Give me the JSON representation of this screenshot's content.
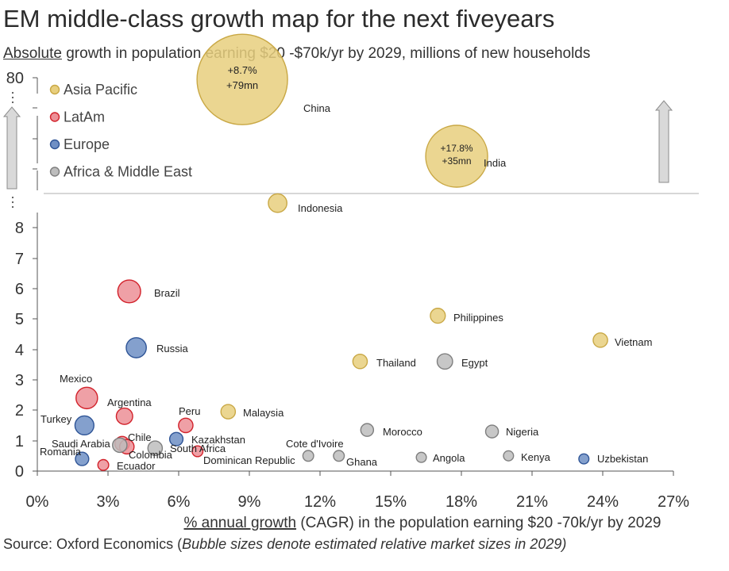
{
  "title": "EM middle-class growth map for the next fiveyears",
  "subtitle": {
    "underlined": "Absolute",
    "rest": " growth in population earning $20 -$70k/yr by 2029, millions of new households"
  },
  "source": {
    "plain": "Source: Oxford Economics (",
    "italic": "Bubble sizes denote estimated relative market sizes in 2029)"
  },
  "chart_data": {
    "type": "scatter",
    "title": "EM middle-class growth map for the next fiveyears",
    "xlabel_underlined": "% annual growth",
    "xlabel_rest": " (CAGR) in the population earning $20 -70k/yr by 2029",
    "x_ticks": [
      "0%",
      "3%",
      "6%",
      "9%",
      "12%",
      "15%",
      "18%",
      "21%",
      "24%",
      "27%"
    ],
    "xlim": [
      0,
      27
    ],
    "y_ticks": [
      "0",
      "1",
      "2",
      "3",
      "4",
      "5",
      "6",
      "7",
      "8",
      "80"
    ],
    "ylim": [
      0,
      80
    ],
    "y_axis_break": true,
    "grid": false,
    "legend_position": "top-left",
    "colors": {
      "Asia Pacific": "#e8cf7e",
      "LatAm": "#ec8f96",
      "Europe": "#6f8fc4",
      "Africa & Middle East": "#bdbdbd"
    },
    "stroke_colors": {
      "Asia Pacific": "#c9a845",
      "LatAm": "#d2222b",
      "Europe": "#2f5597",
      "Africa & Middle East": "#7f7f7f"
    },
    "legend": [
      "Asia Pacific",
      "LatAm",
      "Europe",
      "Africa & Middle East"
    ],
    "series": [
      {
        "name": "Asia Pacific",
        "points": [
          {
            "label": "China",
            "x": 8.7,
            "y": 79,
            "size": 100,
            "annotation": [
              "+8.7%",
              "+79mn"
            ]
          },
          {
            "label": "India",
            "x": 17.8,
            "y": 35,
            "size": 50,
            "annotation": [
              "+17.8%",
              "+35mn"
            ]
          },
          {
            "label": "Indonesia",
            "x": 10.2,
            "y": 8.8,
            "size": 11
          },
          {
            "label": "Philippines",
            "x": 17.0,
            "y": 5.1,
            "size": 7
          },
          {
            "label": "Vietnam",
            "x": 23.9,
            "y": 4.3,
            "size": 6.5
          },
          {
            "label": "Thailand",
            "x": 13.7,
            "y": 3.6,
            "size": 6.5
          },
          {
            "label": "Malaysia",
            "x": 8.1,
            "y": 1.95,
            "size": 6.5
          }
        ]
      },
      {
        "name": "LatAm",
        "points": [
          {
            "label": "Brazil",
            "x": 3.9,
            "y": 5.9,
            "size": 17
          },
          {
            "label": "Mexico",
            "x": 2.1,
            "y": 2.4,
            "size": 15
          },
          {
            "label": "Argentina",
            "x": 3.7,
            "y": 1.8,
            "size": 8.5
          },
          {
            "label": "Peru",
            "x": 6.3,
            "y": 1.5,
            "size": 6.5
          },
          {
            "label": "Chile",
            "x": 3.6,
            "y": 0.9,
            "size": 6.5
          },
          {
            "label": "Colombia",
            "x": 3.8,
            "y": 0.8,
            "size": 6.5
          },
          {
            "label": "Dominican Republic",
            "x": 6.8,
            "y": 0.65,
            "size": 3.5
          },
          {
            "label": "Ecuador",
            "x": 2.8,
            "y": 0.2,
            "size": 3.5
          }
        ]
      },
      {
        "name": "Europe",
        "points": [
          {
            "label": "Russia",
            "x": 4.2,
            "y": 4.05,
            "size": 13
          },
          {
            "label": "Turkey",
            "x": 2.0,
            "y": 1.5,
            "size": 11.5
          },
          {
            "label": "Kazakhstan",
            "x": 5.9,
            "y": 1.05,
            "size": 5.5
          },
          {
            "label": "Romania",
            "x": 1.9,
            "y": 0.4,
            "size": 5.5
          },
          {
            "label": "Uzbekistan",
            "x": 23.2,
            "y": 0.4,
            "size": 3
          }
        ]
      },
      {
        "name": "Africa & Middle East",
        "points": [
          {
            "label": "Egypt",
            "x": 17.3,
            "y": 3.6,
            "size": 7.5
          },
          {
            "label": "Saudi Arabia",
            "x": 3.5,
            "y": 0.85,
            "size": 6.5
          },
          {
            "label": "South Africa",
            "x": 5.0,
            "y": 0.75,
            "size": 6.5
          },
          {
            "label": "Morocco",
            "x": 14.0,
            "y": 1.35,
            "size": 5
          },
          {
            "label": "Nigeria",
            "x": 19.3,
            "y": 1.3,
            "size": 5
          },
          {
            "label": "Cote d'Ivoire",
            "x": 11.5,
            "y": 0.5,
            "size": 3.5
          },
          {
            "label": "Ghana",
            "x": 12.8,
            "y": 0.5,
            "size": 3.5
          },
          {
            "label": "Angola",
            "x": 16.3,
            "y": 0.45,
            "size": 3
          },
          {
            "label": "Kenya",
            "x": 20.0,
            "y": 0.5,
            "size": 3
          }
        ]
      }
    ]
  }
}
